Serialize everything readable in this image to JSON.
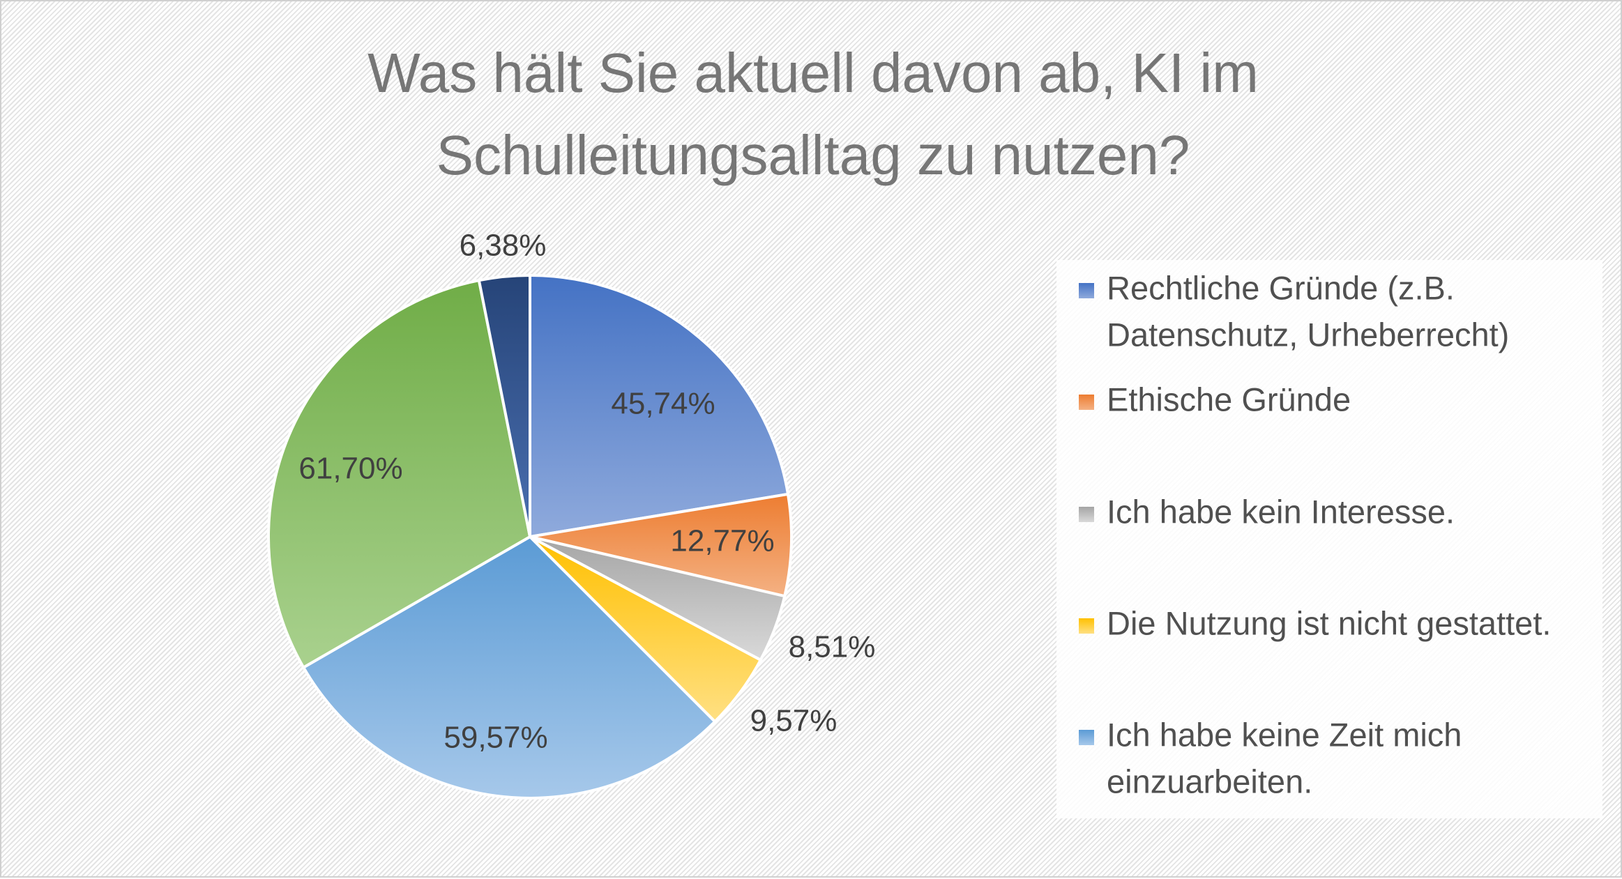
{
  "chart_data": {
    "type": "pie",
    "title_lines": [
      "Was hält Sie aktuell davon ab, KI im",
      "Schulleitungsalltag zu nutzen?"
    ],
    "slices": [
      {
        "name_lines": [
          "Rechtliche Gründe (z.B.",
          "Datenschutz, Urheberrecht)"
        ],
        "value": 45.74,
        "label": "45,74%",
        "color": "#4472c4",
        "light": "#8faadc",
        "in_legend": true
      },
      {
        "name_lines": [
          "Ethische Gründe"
        ],
        "value": 12.77,
        "label": "12,77%",
        "color": "#ed7d31",
        "light": "#f4b183",
        "in_legend": true
      },
      {
        "name_lines": [
          "Ich habe kein Interesse."
        ],
        "value": 8.51,
        "label": "8,51%",
        "color": "#a5a5a5",
        "light": "#d9d9d9",
        "in_legend": true
      },
      {
        "name_lines": [
          "Die Nutzung ist nicht gestattet."
        ],
        "value": 9.57,
        "label": "9,57%",
        "color": "#ffc000",
        "light": "#ffe083",
        "in_legend": true
      },
      {
        "name_lines": [
          "Ich habe keine Zeit mich",
          "einzuarbeiten."
        ],
        "value": 59.57,
        "label": "59,57%",
        "color": "#5b9bd5",
        "light": "#a6c8ea",
        "in_legend": true
      },
      {
        "name_lines": [],
        "value": 61.7,
        "label": "61,70%",
        "color": "#70ad47",
        "light": "#a9d18e",
        "in_legend": false
      },
      {
        "name_lines": [],
        "value": 6.38,
        "label": "6,38%",
        "color": "#264478",
        "light": "#4a6fb0",
        "in_legend": false
      }
    ],
    "legend_position": "right"
  }
}
